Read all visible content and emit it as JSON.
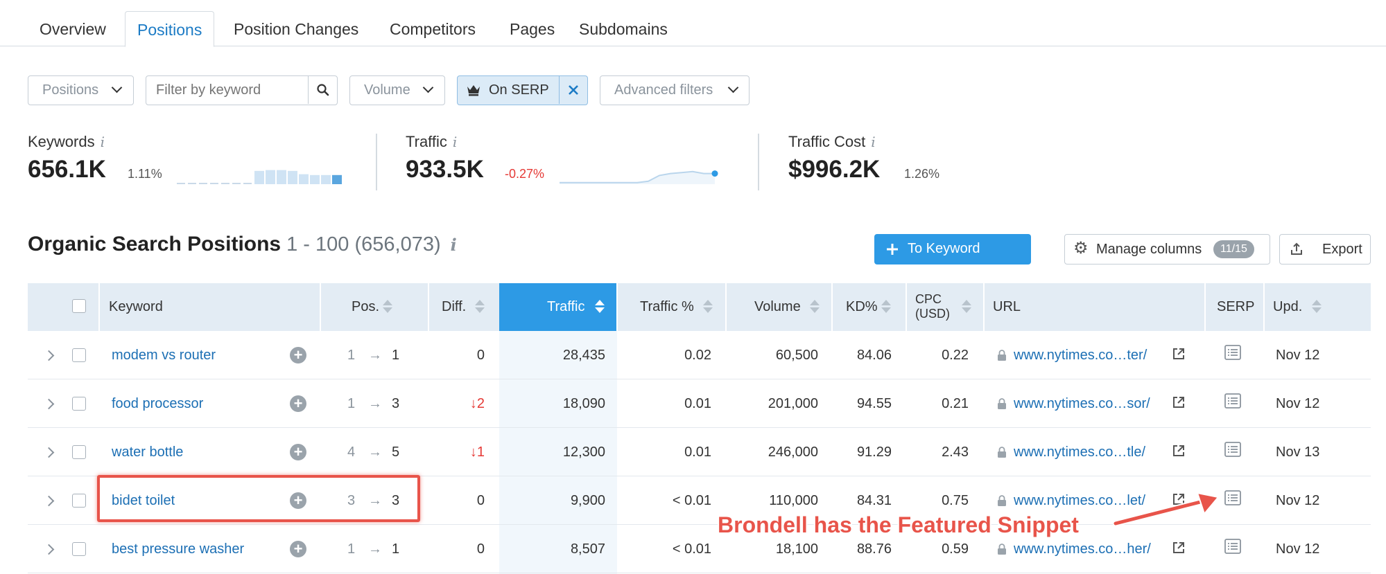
{
  "tabs": [
    {
      "label": "Overview"
    },
    {
      "label": "Positions"
    },
    {
      "label": "Position Changes"
    },
    {
      "label": "Competitors"
    },
    {
      "label": "Pages"
    },
    {
      "label": "Subdomains"
    }
  ],
  "filters": {
    "positions_label": "Positions",
    "keyword_placeholder": "Filter by keyword",
    "volume_label": "Volume",
    "serp_label": "On SERP",
    "advanced_label": "Advanced filters"
  },
  "metrics": [
    {
      "label": "Keywords",
      "value": "656.1K",
      "delta": "1.11%",
      "delta_color": "#555555",
      "trend": [
        0.12,
        0.12,
        0.12,
        0.12,
        0.12,
        0.12,
        0.12,
        0.8,
        0.85,
        0.85,
        0.8,
        0.6,
        0.55,
        0.55,
        0.55
      ]
    },
    {
      "label": "Traffic",
      "value": "933.5K",
      "delta": "-0.27%",
      "delta_color": "#e53935",
      "trend": [
        0.08,
        0.08,
        0.08,
        0.08,
        0.08,
        0.08,
        0.08,
        0.08,
        0.15,
        0.45,
        0.55,
        0.6,
        0.65,
        0.55,
        0.55
      ]
    },
    {
      "label": "Traffic Cost",
      "value": "$996.2K",
      "delta": "1.26%",
      "delta_color": "#555555"
    }
  ],
  "section": {
    "title": "Organic Search Positions",
    "range": "1 - 100 (656,073)"
  },
  "buttons": {
    "keyword_manager": "To Keyword Manager",
    "manage_columns": "Manage columns",
    "columns_badge": "11/15",
    "export": "Export"
  },
  "columns": {
    "keyword": "Keyword",
    "pos": "Pos.",
    "diff": "Diff.",
    "traffic": "Traffic",
    "traffic_pct": "Traffic %",
    "volume": "Volume",
    "kd": "KD%",
    "cpc_line1": "CPC",
    "cpc_line2": "(USD)",
    "url": "URL",
    "serp": "SERP",
    "upd": "Upd."
  },
  "rows": [
    {
      "keyword": "modem vs router",
      "pos_from": "1",
      "pos_to": "1",
      "diff": "0",
      "diff_down": false,
      "traffic": "28,435",
      "traffic_pct": "0.02",
      "volume": "60,500",
      "kd": "84.06",
      "cpc": "0.22",
      "url": "www.nytimes.co…ter/",
      "upd": "Nov 12"
    },
    {
      "keyword": "food processor",
      "pos_from": "1",
      "pos_to": "3",
      "diff": "↓2",
      "diff_down": true,
      "traffic": "18,090",
      "traffic_pct": "0.01",
      "volume": "201,000",
      "kd": "94.55",
      "cpc": "0.21",
      "url": "www.nytimes.co…sor/",
      "upd": "Nov 12"
    },
    {
      "keyword": "water bottle",
      "pos_from": "4",
      "pos_to": "5",
      "diff": "↓1",
      "diff_down": true,
      "traffic": "12,300",
      "traffic_pct": "0.01",
      "volume": "246,000",
      "kd": "91.29",
      "cpc": "2.43",
      "url": "www.nytimes.co…tle/",
      "upd": "Nov 13"
    },
    {
      "keyword": "bidet toilet",
      "pos_from": "3",
      "pos_to": "3",
      "diff": "0",
      "diff_down": false,
      "traffic": "9,900",
      "traffic_pct": "< 0.01",
      "volume": "110,000",
      "kd": "84.31",
      "cpc": "0.75",
      "url": "www.nytimes.co…let/",
      "upd": "Nov 12"
    },
    {
      "keyword": "best pressure washer",
      "pos_from": "1",
      "pos_to": "1",
      "diff": "0",
      "diff_down": false,
      "traffic": "8,507",
      "traffic_pct": "< 0.01",
      "volume": "18,100",
      "kd": "88.76",
      "cpc": "0.59",
      "url": "www.nytimes.co…her/",
      "upd": "Nov 12"
    }
  ],
  "annotation": {
    "text": "Brondell has the Featured Snippet",
    "color": "#e8544a"
  },
  "colors": {
    "accent": "#1c7bc5",
    "link": "#1c6fb4",
    "header_bg": "#e3ecf4",
    "active_sort": "#2d9ae5",
    "negative": "#e53935"
  }
}
